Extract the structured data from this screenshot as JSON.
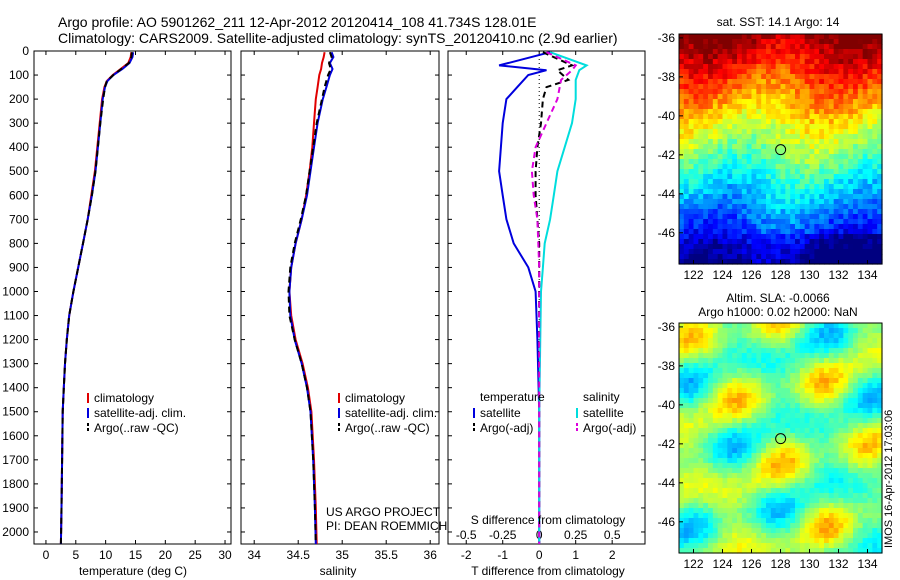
{
  "header": {
    "line1": "Argo profile: AO 5901262_211 12-Apr-2012 20120414_108 41.734S 128.01E",
    "line2": "Climatology: CARS2009. Satellite-adjusted climatology: synTS_20120410.nc (2.9d earlier)"
  },
  "colors": {
    "climatology": "#e00000",
    "satellite": "#0000dd",
    "argo": "#000000",
    "sal_satellite": "#00dddd",
    "sal_argo": "#dd00dd"
  },
  "chart_data": [
    {
      "type": "line",
      "xlabel": "temperature (deg C)",
      "ylabel": "",
      "xlim": [
        -2,
        31
      ],
      "ylim": [
        2050,
        0
      ],
      "xticks": [
        0,
        5,
        10,
        15,
        20,
        25,
        30
      ],
      "yticks": [
        0,
        100,
        200,
        300,
        400,
        500,
        600,
        700,
        800,
        900,
        1000,
        1100,
        1200,
        1300,
        1400,
        1500,
        1600,
        1700,
        1800,
        1900,
        2000
      ],
      "legend": [
        "climatology",
        "satellite-adj. clim.",
        "Argo(..raw -QC)"
      ],
      "series": [
        {
          "name": "climatology",
          "x": [
            14.3,
            14.2,
            13.8,
            12.5,
            11.2,
            10.2,
            9.8,
            9.4,
            9.0,
            8.6,
            8.2,
            7.6,
            7.0,
            6.2,
            5.4,
            4.6,
            3.9,
            3.5,
            3.2,
            3.0,
            2.8,
            2.7,
            2.6,
            2.5
          ],
          "y": [
            5,
            25,
            50,
            75,
            100,
            125,
            150,
            200,
            300,
            400,
            500,
            600,
            700,
            800,
            900,
            1000,
            1100,
            1200,
            1300,
            1400,
            1500,
            1700,
            1900,
            2050
          ]
        },
        {
          "name": "satellite-adj. clim.",
          "x": [
            14.6,
            14.5,
            14.0,
            12.8,
            11.3,
            10.3,
            9.9,
            9.5,
            9.1,
            8.7,
            8.3,
            7.7,
            7.0,
            6.2,
            5.4,
            4.6,
            3.9,
            3.5,
            3.2,
            3.0,
            2.8,
            2.7,
            2.6,
            2.5
          ],
          "y": [
            5,
            25,
            50,
            75,
            100,
            125,
            150,
            200,
            300,
            400,
            500,
            600,
            700,
            800,
            900,
            1000,
            1100,
            1200,
            1300,
            1400,
            1500,
            1700,
            1900,
            2050
          ]
        },
        {
          "name": "Argo(..raw -QC)",
          "x": [
            14.4,
            14.3,
            13.9,
            12.6,
            11.3,
            10.2,
            9.9,
            9.6,
            9.1,
            8.7,
            8.3,
            7.7,
            7.0,
            6.2,
            5.4,
            4.6,
            3.9,
            3.5,
            3.2,
            3.0,
            2.8,
            2.7,
            2.6,
            2.5
          ],
          "y": [
            5,
            25,
            50,
            75,
            100,
            125,
            150,
            200,
            300,
            400,
            500,
            600,
            700,
            800,
            900,
            1000,
            1100,
            1200,
            1300,
            1400,
            1500,
            1700,
            1900,
            2050
          ]
        }
      ]
    },
    {
      "type": "line",
      "xlabel": "salinity",
      "xlim": [
        33.85,
        36.1
      ],
      "ylim": [
        2050,
        0
      ],
      "xticks": [
        34,
        34.5,
        35,
        35.5,
        36
      ],
      "legend": [
        "climatology",
        "satellite-adj. clim.",
        "Argo(..raw -QC)"
      ],
      "series": [
        {
          "name": "climatology",
          "x": [
            34.8,
            34.79,
            34.77,
            34.76,
            34.74,
            34.72,
            34.7,
            34.68,
            34.66,
            34.63,
            34.59,
            34.54,
            34.47,
            34.42,
            34.4,
            34.42,
            34.47,
            34.55,
            34.61,
            34.65,
            34.68,
            34.7,
            34.71
          ],
          "y": [
            5,
            25,
            50,
            75,
            100,
            150,
            200,
            300,
            400,
            500,
            600,
            700,
            800,
            900,
            1000,
            1100,
            1200,
            1300,
            1400,
            1500,
            1700,
            1900,
            2050
          ]
        },
        {
          "name": "satellite-adj. clim.",
          "x": [
            34.88,
            34.9,
            34.86,
            34.89,
            34.86,
            34.82,
            34.78,
            34.72,
            34.68,
            34.64,
            34.6,
            34.54,
            34.47,
            34.42,
            34.4,
            34.41,
            34.46,
            34.54,
            34.6,
            34.64,
            34.67,
            34.69,
            34.7
          ],
          "y": [
            5,
            25,
            50,
            75,
            100,
            150,
            200,
            300,
            400,
            500,
            600,
            700,
            800,
            900,
            1000,
            1100,
            1200,
            1300,
            1400,
            1500,
            1700,
            1900,
            2050
          ]
        },
        {
          "name": "Argo(..raw -QC)",
          "x": [
            34.86,
            34.88,
            34.85,
            34.87,
            34.84,
            34.8,
            34.77,
            34.71,
            34.67,
            34.63,
            34.59,
            34.53,
            34.46,
            34.41,
            34.39,
            34.4,
            34.46,
            34.54,
            34.6,
            34.64,
            34.67,
            34.69,
            34.7
          ],
          "y": [
            5,
            25,
            50,
            75,
            100,
            150,
            200,
            300,
            400,
            500,
            600,
            700,
            800,
            900,
            1000,
            1100,
            1200,
            1300,
            1400,
            1500,
            1700,
            1900,
            2050
          ]
        }
      ],
      "annotations": [
        "US ARGO PROJECT",
        "PI: DEAN ROEMMICH"
      ]
    },
    {
      "type": "line",
      "xlabel": "T difference from climatology",
      "xlabel_top": "S difference from climatology",
      "xlim": [
        -2.5,
        2.9
      ],
      "ylim": [
        2050,
        0
      ],
      "xticks": [
        -2,
        -1,
        0,
        1,
        2
      ],
      "xticks_top": [
        -0.5,
        -0.25,
        0,
        0.25,
        0.5
      ],
      "legend_headers": [
        "temperature",
        "salinity"
      ],
      "legend": [
        "satellite",
        "Argo(-adj)",
        "satellite",
        "Argo(-adj)"
      ],
      "series": [
        {
          "name": "satellite",
          "x": [
            0.3,
            -1.1,
            0.2,
            -0.3,
            -0.6,
            -0.9,
            -1.0,
            -1.05,
            -1.1,
            -1.0,
            -0.9,
            -0.7,
            -0.3,
            -0.1,
            -0.05,
            0,
            0
          ],
          "y": [
            5,
            60,
            80,
            100,
            150,
            200,
            300,
            400,
            500,
            600,
            700,
            800,
            900,
            1000,
            1200,
            1500,
            2050
          ]
        },
        {
          "name": "Argo(-adj)",
          "x": [
            0.1,
            0.9,
            0.5,
            0.8,
            0.2,
            0.1,
            0.05,
            -0.05,
            -0.1,
            -0.1,
            -0.05,
            0,
            0,
            0,
            0,
            0
          ],
          "y": [
            5,
            60,
            80,
            120,
            150,
            200,
            300,
            400,
            500,
            600,
            700,
            800,
            900,
            1200,
            1500,
            2050
          ]
        },
        {
          "name": "satellite",
          "x": [
            0.3,
            1.3,
            1.1,
            1.0,
            1.0,
            0.9,
            0.7,
            0.5,
            0.4,
            0.3,
            0.15,
            0.1,
            0.05,
            0,
            0
          ],
          "y": [
            5,
            60,
            80,
            120,
            200,
            300,
            400,
            500,
            600,
            700,
            800,
            900,
            1000,
            1500,
            2050
          ]
        },
        {
          "name": "Argo(-adj)",
          "x": [
            0.2,
            1.0,
            0.9,
            0.6,
            0.5,
            0.2,
            -0.1,
            -0.2,
            -0.15,
            -0.05,
            0,
            0,
            0
          ],
          "y": [
            5,
            60,
            80,
            120,
            200,
            300,
            400,
            500,
            600,
            700,
            900,
            1500,
            2050
          ]
        }
      ]
    },
    {
      "type": "heatmap",
      "title": "sat. SST: 14.1 Argo: 14",
      "xticks": [
        122,
        124,
        126,
        128,
        130,
        132,
        134
      ],
      "yticks": [
        -36,
        -38,
        -40,
        -42,
        -44,
        -46
      ],
      "xlim": [
        121,
        135
      ],
      "ylim": [
        -47.6,
        -35.8
      ],
      "marker": {
        "x": 128.01,
        "y": -41.734
      }
    },
    {
      "type": "heatmap",
      "title": "Altim. SLA: -0.0066",
      "subtitle": "Argo h1000: 0.02 h2000: NaN",
      "xticks": [
        122,
        124,
        126,
        128,
        130,
        132,
        134
      ],
      "yticks": [
        -36,
        -38,
        -40,
        -42,
        -44,
        -46
      ],
      "xlim": [
        121,
        135
      ],
      "ylim": [
        -47.6,
        -35.8
      ],
      "marker": {
        "x": 128.01,
        "y": -41.734
      }
    }
  ],
  "watermark": "IMOS 16-Apr-2012 17:03:06"
}
